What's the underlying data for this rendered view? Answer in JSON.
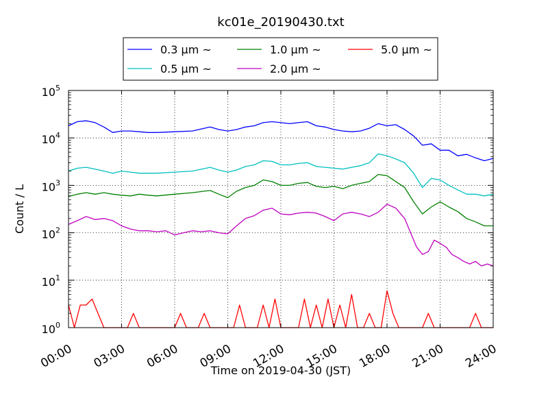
{
  "chart_data": {
    "type": "line",
    "title": "kc01e_20190430.txt",
    "xlabel": "Time on 2019-04-30 (JST)",
    "ylabel": "Count / L",
    "yscale": "log",
    "ylim": [
      1,
      100000
    ],
    "xlim": [
      "00:00",
      "24:00"
    ],
    "x_ticks": [
      "00:00",
      "03:00",
      "06:00",
      "09:00",
      "12:00",
      "15:00",
      "18:00",
      "21:00",
      "24:00"
    ],
    "y_ticks": [
      {
        "base": "10",
        "exp": "0",
        "value": 1
      },
      {
        "base": "10",
        "exp": "1",
        "value": 10
      },
      {
        "base": "10",
        "exp": "2",
        "value": 100
      },
      {
        "base": "10",
        "exp": "3",
        "value": 1000
      },
      {
        "base": "10",
        "exp": "4",
        "value": 10000
      },
      {
        "base": "10",
        "exp": "5",
        "value": 100000
      }
    ],
    "grid": true,
    "legend_position": "top-center",
    "series": [
      {
        "name": "0.3 μm ~",
        "color": "#0000ff",
        "x": [
          "00:00",
          "00:30",
          "01:00",
          "01:30",
          "02:00",
          "02:30",
          "03:00",
          "03:30",
          "04:00",
          "04:30",
          "05:00",
          "06:00",
          "07:00",
          "08:00",
          "08:30",
          "09:00",
          "09:30",
          "10:00",
          "10:30",
          "11:00",
          "11:30",
          "12:00",
          "12:30",
          "13:00",
          "13:30",
          "14:00",
          "14:30",
          "15:00",
          "15:30",
          "16:00",
          "16:30",
          "17:00",
          "17:30",
          "18:00",
          "18:30",
          "19:00",
          "19:30",
          "20:00",
          "20:30",
          "21:00",
          "21:30",
          "22:00",
          "22:30",
          "23:00",
          "23:30",
          "24:00"
        ],
        "y": [
          18000,
          22000,
          23000,
          21000,
          17000,
          13000,
          14000,
          14000,
          13500,
          13000,
          13000,
          13500,
          14000,
          17000,
          15000,
          14000,
          15000,
          17000,
          18000,
          21000,
          22000,
          21000,
          20000,
          21000,
          22000,
          18000,
          17000,
          15000,
          14000,
          13500,
          14000,
          16000,
          20000,
          18000,
          19000,
          15000,
          11000,
          7000,
          7500,
          5500,
          5500,
          4200,
          4500,
          3800,
          3300,
          3700
        ]
      },
      {
        "name": "0.5 μm ~",
        "color": "#00bfbf",
        "x": [
          "00:00",
          "00:30",
          "01:00",
          "01:30",
          "02:00",
          "02:30",
          "03:00",
          "03:30",
          "04:00",
          "04:30",
          "05:00",
          "06:00",
          "07:00",
          "08:00",
          "08:30",
          "09:00",
          "09:30",
          "10:00",
          "10:30",
          "11:00",
          "11:30",
          "12:00",
          "12:30",
          "13:00",
          "13:30",
          "14:00",
          "14:30",
          "15:00",
          "15:30",
          "16:00",
          "16:30",
          "17:00",
          "17:30",
          "18:00",
          "18:30",
          "19:00",
          "19:30",
          "20:00",
          "20:30",
          "21:00",
          "21:30",
          "22:00",
          "22:30",
          "23:00",
          "23:30",
          "24:00"
        ],
        "y": [
          2000,
          2300,
          2400,
          2200,
          2000,
          1800,
          2000,
          1900,
          1800,
          1800,
          1800,
          1900,
          2000,
          2400,
          2100,
          1900,
          2100,
          2500,
          2700,
          3300,
          3200,
          2700,
          2700,
          2900,
          3000,
          2500,
          2400,
          2300,
          2200,
          2400,
          2600,
          3000,
          4600,
          4200,
          3600,
          3000,
          1800,
          900,
          1400,
          1300,
          1000,
          800,
          650,
          650,
          600,
          650
        ]
      },
      {
        "name": "1.0 μm ~",
        "color": "#008000",
        "x": [
          "00:00",
          "00:30",
          "01:00",
          "01:30",
          "02:00",
          "02:30",
          "03:00",
          "03:30",
          "04:00",
          "04:30",
          "05:00",
          "06:00",
          "07:00",
          "08:00",
          "08:30",
          "09:00",
          "09:30",
          "10:00",
          "10:30",
          "11:00",
          "11:30",
          "12:00",
          "12:30",
          "13:00",
          "13:30",
          "14:00",
          "14:30",
          "15:00",
          "15:30",
          "16:00",
          "16:30",
          "17:00",
          "17:30",
          "18:00",
          "18:30",
          "19:00",
          "19:30",
          "20:00",
          "20:30",
          "21:00",
          "21:30",
          "22:00",
          "22:30",
          "23:00",
          "23:30",
          "24:00"
        ],
        "y": [
          580,
          650,
          700,
          650,
          700,
          650,
          620,
          600,
          650,
          620,
          600,
          650,
          700,
          780,
          650,
          550,
          750,
          900,
          1000,
          1300,
          1200,
          1000,
          1000,
          1100,
          1150,
          950,
          900,
          950,
          850,
          1000,
          1100,
          1200,
          1700,
          1600,
          1200,
          900,
          450,
          250,
          350,
          450,
          350,
          280,
          200,
          170,
          140,
          140
        ]
      },
      {
        "name": "2.0 μm ~",
        "color": "#bf00bf",
        "x": [
          "00:00",
          "00:30",
          "01:00",
          "01:30",
          "02:00",
          "02:30",
          "03:00",
          "03:30",
          "04:00",
          "04:30",
          "05:00",
          "05:30",
          "06:00",
          "06:30",
          "07:00",
          "07:30",
          "08:00",
          "08:30",
          "09:00",
          "09:30",
          "10:00",
          "10:30",
          "11:00",
          "11:30",
          "12:00",
          "12:30",
          "13:00",
          "13:30",
          "14:00",
          "14:30",
          "15:00",
          "15:30",
          "16:00",
          "16:30",
          "17:00",
          "17:30",
          "18:00",
          "18:30",
          "19:00",
          "19:20",
          "19:40",
          "20:00",
          "20:20",
          "20:40",
          "21:00",
          "21:20",
          "21:40",
          "22:00",
          "22:20",
          "22:40",
          "23:00",
          "23:20",
          "23:40",
          "24:00"
        ],
        "y": [
          150,
          180,
          220,
          190,
          200,
          180,
          140,
          120,
          110,
          110,
          105,
          110,
          90,
          100,
          110,
          105,
          110,
          100,
          95,
          140,
          200,
          230,
          300,
          330,
          250,
          240,
          260,
          270,
          260,
          220,
          180,
          250,
          270,
          250,
          220,
          270,
          400,
          330,
          200,
          100,
          50,
          35,
          40,
          70,
          60,
          50,
          35,
          30,
          25,
          22,
          25,
          20,
          22,
          20
        ]
      },
      {
        "name": "5.0 μm ~",
        "color": "#ff0000",
        "x": [
          "00:00",
          "00:20",
          "00:40",
          "01:00",
          "01:20",
          "01:40",
          "02:00",
          "02:20",
          "02:40",
          "03:00",
          "03:20",
          "03:40",
          "04:00",
          "04:20",
          "04:40",
          "05:00",
          "05:20",
          "05:40",
          "06:00",
          "06:20",
          "06:40",
          "07:00",
          "07:20",
          "07:40",
          "08:00",
          "08:20",
          "08:40",
          "09:00",
          "09:20",
          "09:40",
          "10:00",
          "10:20",
          "10:40",
          "11:00",
          "11:20",
          "11:40",
          "12:00",
          "12:20",
          "12:40",
          "13:00",
          "13:20",
          "13:40",
          "14:00",
          "14:20",
          "14:40",
          "15:00",
          "15:20",
          "15:40",
          "16:00",
          "16:20",
          "16:40",
          "17:00",
          "17:20",
          "17:40",
          "18:00",
          "18:20",
          "18:40",
          "19:00",
          "19:20",
          "19:40",
          "20:00",
          "20:20",
          "20:40",
          "21:00",
          "21:20",
          "21:40",
          "22:00",
          "22:20",
          "22:40",
          "23:00",
          "23:20",
          "23:40",
          "24:00"
        ],
        "y": [
          3,
          1,
          3,
          3,
          4,
          2,
          1,
          1,
          1,
          1,
          1,
          2,
          1,
          1,
          1,
          1,
          1,
          1,
          1,
          2,
          1,
          1,
          1,
          2,
          1,
          1,
          1,
          1,
          1,
          3,
          1,
          1,
          1,
          3,
          1,
          4,
          1,
          1,
          1,
          1,
          4,
          1,
          3,
          1,
          4,
          1,
          3,
          1,
          5,
          1,
          1,
          2,
          1,
          1,
          6,
          2,
          1,
          1,
          1,
          1,
          1,
          2,
          1,
          1,
          1,
          1,
          1,
          1,
          1,
          2,
          1,
          1,
          1
        ]
      }
    ]
  }
}
